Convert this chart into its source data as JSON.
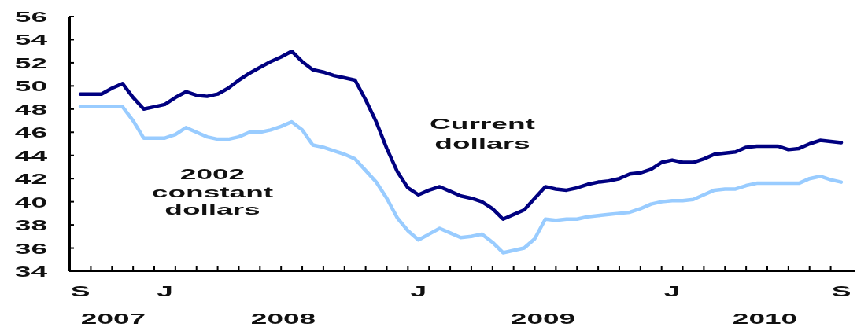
{
  "chart_data": {
    "type": "line",
    "categories": [
      "S",
      null,
      null,
      null,
      null,
      null,
      null,
      null,
      "J",
      null,
      null,
      null,
      null,
      null,
      null,
      null,
      null,
      null,
      null,
      null,
      null,
      null,
      null,
      null,
      null,
      null,
      null,
      null,
      null,
      null,
      null,
      null,
      "J",
      null,
      null,
      null,
      null,
      null,
      null,
      null,
      null,
      null,
      null,
      null,
      null,
      null,
      null,
      null,
      null,
      null,
      null,
      null,
      null,
      null,
      null,
      null,
      "J",
      null,
      null,
      null,
      null,
      null,
      null,
      null,
      null,
      null,
      null,
      null,
      null,
      null,
      null,
      null,
      "S"
    ],
    "series": [
      {
        "name": "Current dollars",
        "color": "#000080",
        "values": [
          49.3,
          49.3,
          49.3,
          49.8,
          50.2,
          49.0,
          48.0,
          48.2,
          48.4,
          49.0,
          49.5,
          49.2,
          49.1,
          49.3,
          49.8,
          50.5,
          51.1,
          51.6,
          52.1,
          52.5,
          53.0,
          52.1,
          51.4,
          51.2,
          50.9,
          50.7,
          50.5,
          48.8,
          46.9,
          44.6,
          42.6,
          41.2,
          40.6,
          41.0,
          41.3,
          40.9,
          40.5,
          40.3,
          40.0,
          39.4,
          38.5,
          38.9,
          39.3,
          40.3,
          41.3,
          41.1,
          41.0,
          41.2,
          41.5,
          41.7,
          41.8,
          42.0,
          42.4,
          42.5,
          42.8,
          43.4,
          43.6,
          43.4,
          43.4,
          43.7,
          44.1,
          44.2,
          44.3,
          44.7,
          44.8,
          44.8,
          44.8,
          44.5,
          44.6,
          45.0,
          45.3,
          45.2,
          45.1
        ]
      },
      {
        "name": "2002 constant dollars",
        "color": "#99ccff",
        "values": [
          48.2,
          48.2,
          48.2,
          48.2,
          48.2,
          47.0,
          45.5,
          45.5,
          45.5,
          45.8,
          46.4,
          46.0,
          45.6,
          45.4,
          45.4,
          45.6,
          46.0,
          46.0,
          46.2,
          46.5,
          46.9,
          46.2,
          44.9,
          44.7,
          44.4,
          44.1,
          43.7,
          42.7,
          41.7,
          40.3,
          38.6,
          37.5,
          36.7,
          37.2,
          37.7,
          37.3,
          36.9,
          37.0,
          37.2,
          36.5,
          35.6,
          35.8,
          36.0,
          36.8,
          38.5,
          38.4,
          38.5,
          38.5,
          38.7,
          38.8,
          38.9,
          39.0,
          39.1,
          39.4,
          39.8,
          40.0,
          40.1,
          40.1,
          40.2,
          40.6,
          41.0,
          41.1,
          41.1,
          41.4,
          41.6,
          41.6,
          41.6,
          41.6,
          41.6,
          42.0,
          42.2,
          41.9,
          41.7
        ]
      }
    ],
    "ylim": [
      34,
      56
    ],
    "yticks": [
      34,
      36,
      38,
      40,
      42,
      44,
      46,
      48,
      50,
      52,
      54,
      56
    ],
    "annotations": [
      "2007",
      "2008",
      "2009",
      "2010"
    ],
    "marker": "none",
    "line_style": "solid"
  }
}
